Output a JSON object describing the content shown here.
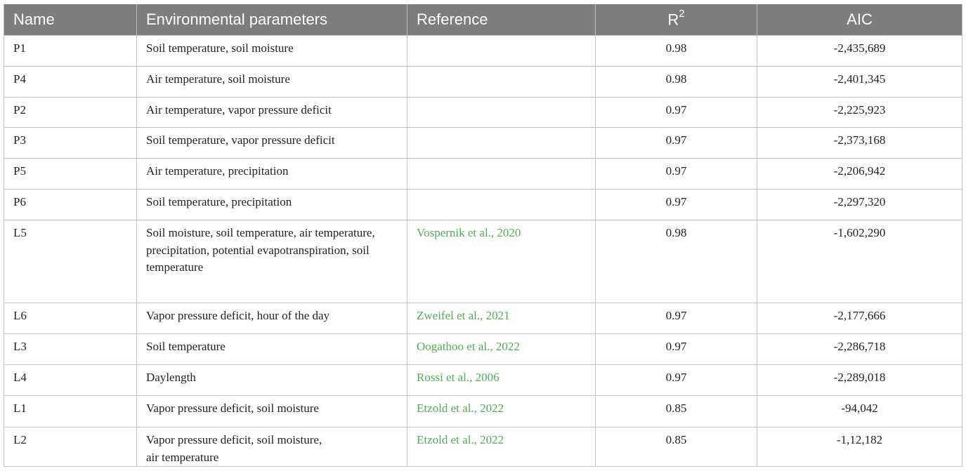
{
  "table": {
    "headers": {
      "name": "Name",
      "env": "Environmental parameters",
      "ref": "Reference",
      "r2_base": "R",
      "r2_sup": "2",
      "aic": "AIC"
    },
    "rows": [
      {
        "name": "P1",
        "env": [
          "Soil temperature, soil moisture"
        ],
        "ref": "",
        "r2": "0.98",
        "aic": "-2,435,689"
      },
      {
        "name": "P4",
        "env": [
          "Air temperature, soil moisture"
        ],
        "ref": "",
        "r2": "0.98",
        "aic": "-2,401,345"
      },
      {
        "name": "P2",
        "env": [
          "Air temperature, vapor pressure deficit"
        ],
        "ref": "",
        "r2": "0.97",
        "aic": "-2,225,923"
      },
      {
        "name": "P3",
        "env": [
          "Soil temperature, vapor pressure deficit"
        ],
        "ref": "",
        "r2": "0.97",
        "aic": "-2,373,168"
      },
      {
        "name": "P5",
        "env": [
          "Air temperature, precipitation"
        ],
        "ref": "",
        "r2": "0.97",
        "aic": "-2,206,942"
      },
      {
        "name": "P6",
        "env": [
          "Soil temperature, precipitation"
        ],
        "ref": "",
        "r2": "0.97",
        "aic": "-2,297,320"
      },
      {
        "name": "L5",
        "env": [
          "Soil moisture, soil temperature, air temperature,",
          "precipitation, potential evapotranspiration, soil temperature"
        ],
        "ref": "Vospernik et al., 2020",
        "r2": "0.98",
        "aic": "-1,602,290"
      },
      {
        "name": "L6",
        "env": [
          "Vapor pressure deficit, hour of the day"
        ],
        "ref": "Zweifel et al., 2021",
        "r2": "0.97",
        "aic": "-2,177,666"
      },
      {
        "name": "L3",
        "env": [
          "Soil temperature"
        ],
        "ref": "Oogathoo et al., 2022",
        "r2": "0.97",
        "aic": "-2,286,718"
      },
      {
        "name": "L4",
        "env": [
          "Daylength"
        ],
        "ref": "Rossi et al., 2006",
        "r2": "0.97",
        "aic": "-2,289,018"
      },
      {
        "name": "L1",
        "env": [
          "Vapor pressure deficit, soil moisture"
        ],
        "ref": "Etzold et al., 2022",
        "r2": "0.85",
        "aic": "-94,042"
      },
      {
        "name": "L2",
        "env": [
          "Vapor pressure deficit, soil moisture,",
          "air temperature"
        ],
        "ref": "Etzold et al., 2022",
        "r2": "0.85",
        "aic": "-1,12,182"
      }
    ]
  }
}
